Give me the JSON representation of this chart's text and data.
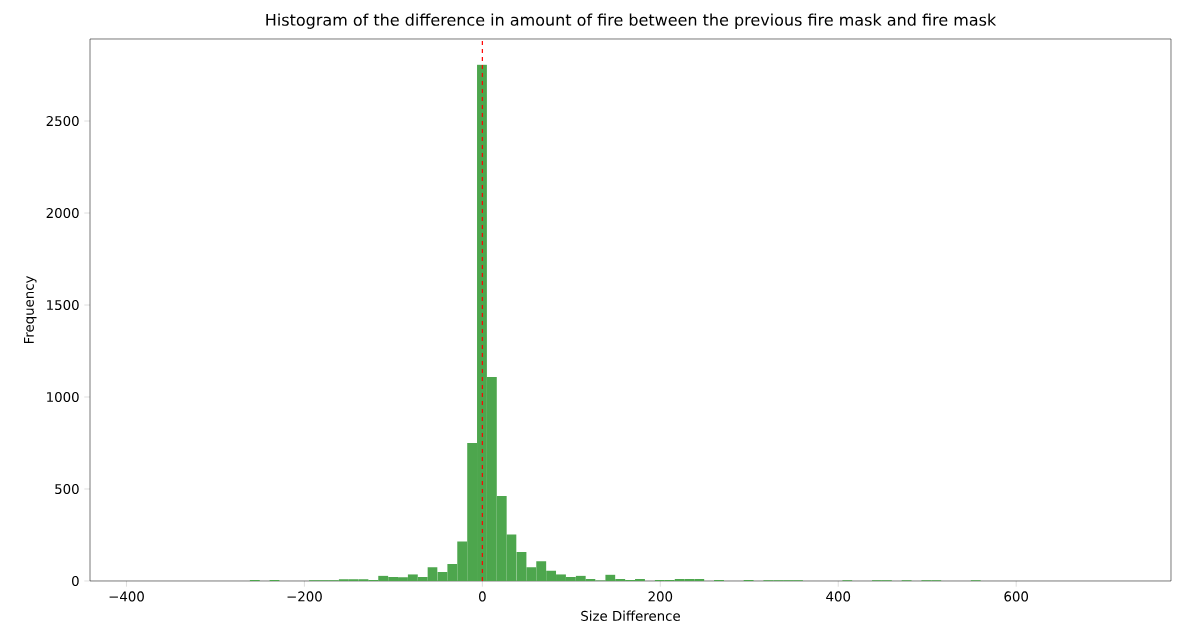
{
  "chart_data": {
    "type": "histogram",
    "title": "Histogram of the difference in amount of fire between the previous fire mask and fire mask",
    "xlabel": "Size Difference",
    "ylabel": "Frequency",
    "bins": [
      -261.3,
      -250.2,
      -239.1,
      -228,
      -216.9,
      -205.8,
      -194.7,
      -183.6,
      -172.5,
      -161.4,
      -150.3,
      -139.2,
      -128.1,
      -117,
      -105.9,
      -94.8,
      -83.7,
      -72.6,
      -61.5,
      -50.4,
      -39.3,
      -28.2,
      -17.1,
      -6,
      5.1,
      16.2,
      27.3,
      38.4,
      49.5,
      60.6,
      71.7,
      82.8,
      93.9,
      105,
      116.1,
      127.2,
      138.3,
      149.4,
      160.5,
      171.6,
      182.7,
      193.8,
      204.9,
      216,
      227.1,
      238.2,
      249.3,
      260.4,
      271.5,
      282.6,
      293.7,
      304.8,
      315.9,
      327,
      338.1,
      349.2,
      360.3,
      371.4,
      382.5,
      393.6,
      404.7,
      415.8,
      426.9,
      438,
      449.1,
      460.2,
      471.3,
      482.4,
      493.5,
      504.6,
      515.7,
      526.8,
      537.9,
      549,
      560.1
    ],
    "values": [
      5,
      0,
      5,
      0,
      0,
      0,
      4,
      4,
      4,
      10,
      10,
      10,
      5,
      29,
      22,
      20,
      36,
      22,
      74,
      49,
      92,
      214,
      750,
      2806,
      1109,
      462,
      252,
      157,
      74,
      107,
      56,
      36,
      22,
      29,
      11,
      3,
      34,
      11,
      5,
      11,
      null,
      5,
      5,
      11,
      11,
      11,
      0,
      5,
      0,
      0,
      5,
      0,
      4,
      4,
      4,
      4,
      0,
      0,
      0,
      0,
      4,
      0,
      0,
      4,
      4,
      0,
      4,
      0,
      4,
      4,
      0,
      0,
      0,
      4
    ],
    "color": "#4da64d",
    "xlim": [
      -441,
      774
    ],
    "ylim": [
      0,
      2946
    ],
    "xticks": [
      {
        "value": -400,
        "label": "−400"
      },
      {
        "value": -200,
        "label": "−200"
      },
      0,
      200,
      400,
      600
    ],
    "yticks": [
      0,
      500,
      1000,
      1500,
      2000,
      2500
    ],
    "ref_lines": [
      {
        "axis": "x",
        "value": 0,
        "color": "#ff0000",
        "line_style": "dashed"
      }
    ],
    "grid": false
  }
}
